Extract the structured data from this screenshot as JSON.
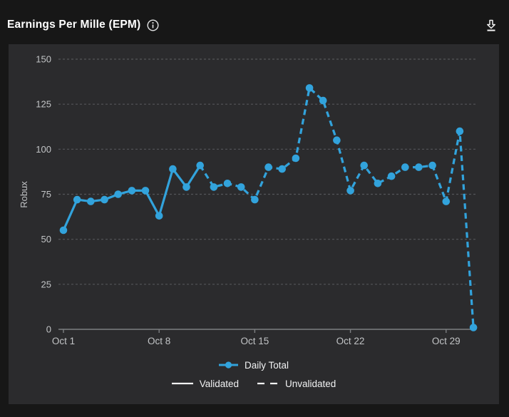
{
  "header": {
    "title": "Earnings Per Mille (EPM)",
    "icons": {
      "info": "info-circle",
      "download": "download-to-line"
    }
  },
  "colors": {
    "page_bg": "#171717",
    "panel_bg": "#2b2b2d",
    "accent_blue": "#32a3dc",
    "gridline": "#55565a",
    "axis": "#7d7f82",
    "tick_text": "#c2c4c6",
    "legend_text": "#f1f2f3",
    "title_text": "#ffffff"
  },
  "chart_data": {
    "type": "line",
    "title": "Earnings Per Mille (EPM)",
    "xlabel": "",
    "ylabel": "Robux",
    "ylim": [
      0,
      150
    ],
    "yticks": [
      0,
      25,
      50,
      75,
      100,
      125,
      150
    ],
    "grid": "horizontal dashed gridlines",
    "legend_position": "bottom center",
    "xticks": [
      {
        "day": 1,
        "label": "Oct 1"
      },
      {
        "day": 8,
        "label": "Oct 8"
      },
      {
        "day": 15,
        "label": "Oct 15"
      },
      {
        "day": 22,
        "label": "Oct 22"
      },
      {
        "day": 29,
        "label": "Oct 29"
      }
    ],
    "series": [
      {
        "name": "Daily Total",
        "x_days": [
          1,
          2,
          3,
          4,
          5,
          6,
          7,
          8,
          9,
          10,
          11,
          12,
          13,
          14,
          15,
          16,
          17,
          18,
          19,
          20,
          21,
          22,
          23,
          24,
          25,
          26,
          27,
          28,
          29,
          30,
          31
        ],
        "values": [
          55,
          72,
          71,
          72,
          75,
          77,
          77,
          63,
          89,
          79,
          91,
          79,
          81,
          79,
          72,
          90,
          89,
          95,
          134,
          127,
          105,
          77,
          91,
          81,
          85,
          90,
          90,
          91,
          71,
          110,
          1
        ],
        "validated_until_day": 11,
        "validated_style": "solid",
        "unvalidated_style": "dashed"
      }
    ],
    "legend": {
      "daily_total": "Daily Total",
      "validated": "Validated",
      "unvalidated": "Unvalidated"
    }
  }
}
